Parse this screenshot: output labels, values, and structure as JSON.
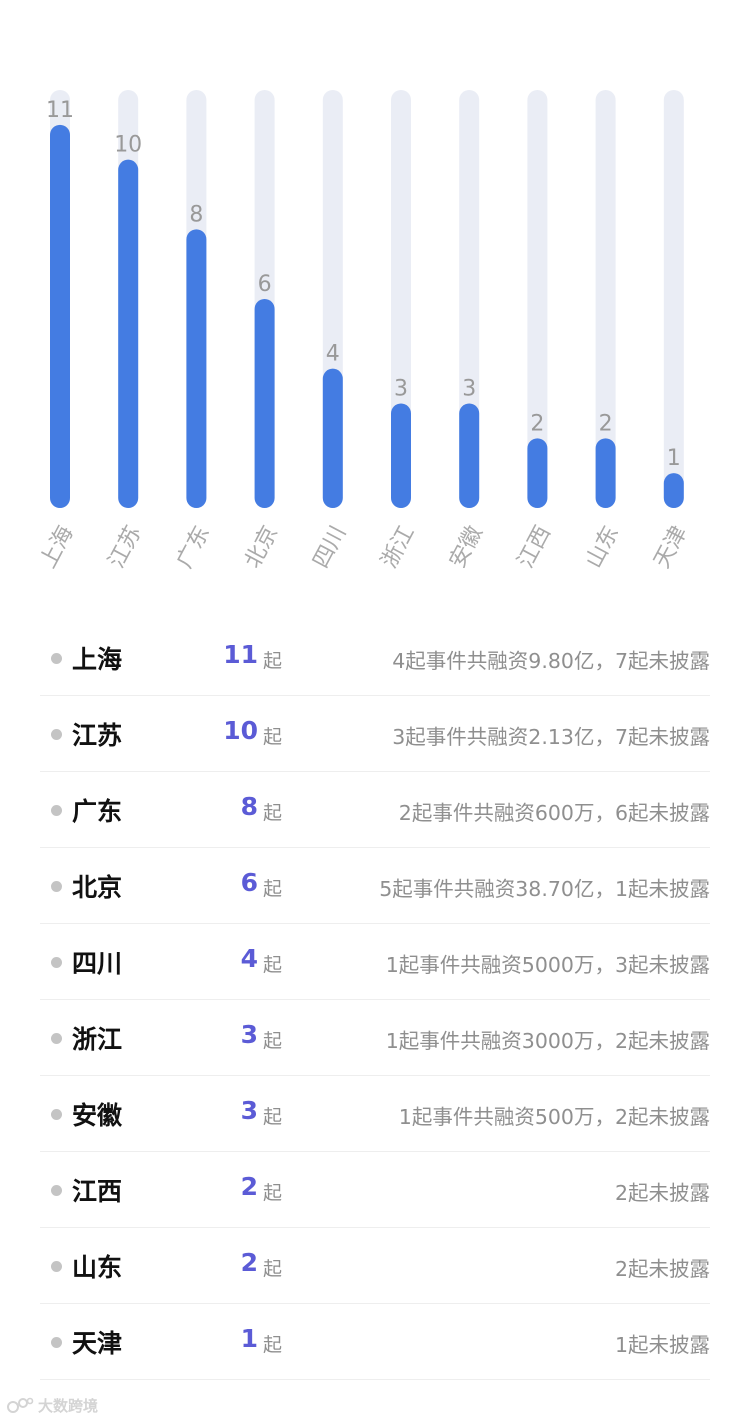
{
  "chart_data": {
    "type": "bar",
    "categories": [
      "上海",
      "江苏",
      "广东",
      "北京",
      "四川",
      "浙江",
      "安徽",
      "江西",
      "山东",
      "天津"
    ],
    "values": [
      11,
      10,
      8,
      6,
      4,
      3,
      3,
      2,
      2,
      1
    ],
    "ylim": [
      0,
      12
    ],
    "grid": false,
    "colors": {
      "bar": "#447ce2",
      "track": "#eaedf5",
      "value_label": "#999999",
      "category_label": "#aaaaaa"
    }
  },
  "list": {
    "unit": "起",
    "rows": [
      {
        "region": "上海",
        "count": "11",
        "desc": "4起事件共融资9.80亿，7起未披露"
      },
      {
        "region": "江苏",
        "count": "10",
        "desc": "3起事件共融资2.13亿，7起未披露"
      },
      {
        "region": "广东",
        "count": "8",
        "desc": "2起事件共融资600万，6起未披露"
      },
      {
        "region": "北京",
        "count": "6",
        "desc": "5起事件共融资38.70亿，1起未披露"
      },
      {
        "region": "四川",
        "count": "4",
        "desc": "1起事件共融资5000万，3起未披露"
      },
      {
        "region": "浙江",
        "count": "3",
        "desc": "1起事件共融资3000万，2起未披露"
      },
      {
        "region": "安徽",
        "count": "3",
        "desc": "1起事件共融资500万，2起未披露"
      },
      {
        "region": "江西",
        "count": "2",
        "desc": "2起未披露"
      },
      {
        "region": "山东",
        "count": "2",
        "desc": "2起未披露"
      },
      {
        "region": "天津",
        "count": "1",
        "desc": "1起未披露"
      }
    ],
    "colors": {
      "count": "#5b5bd6",
      "dot": "#c4c4c4"
    }
  },
  "watermark": {
    "icon": "brand-logo-icon",
    "text": "大数跨境"
  }
}
